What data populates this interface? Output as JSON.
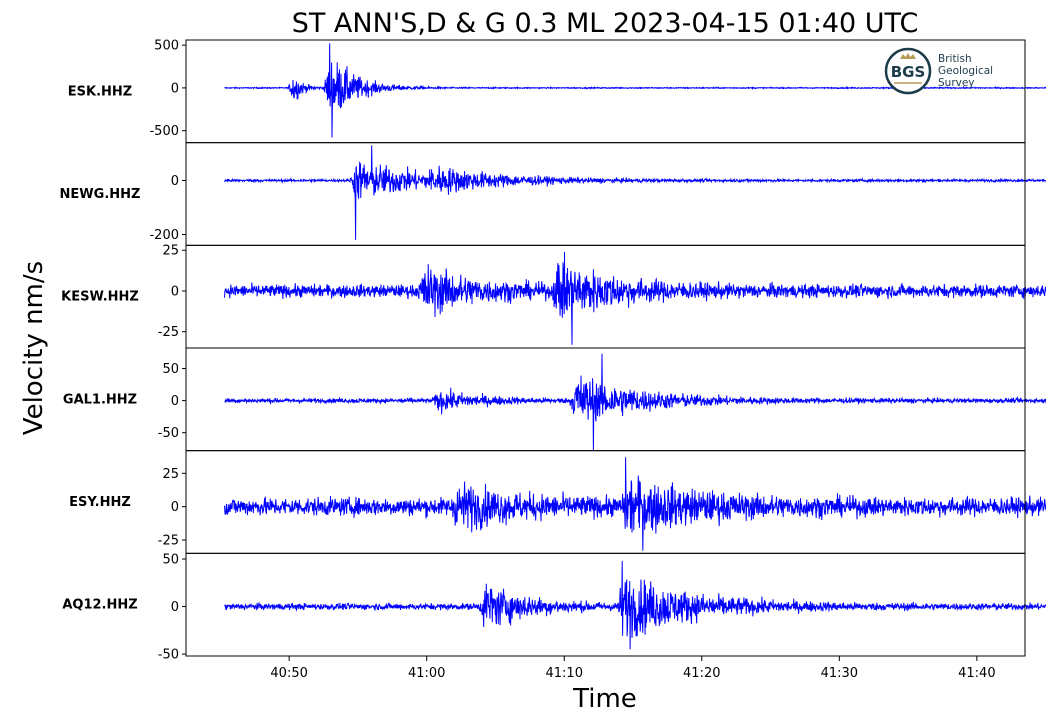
{
  "chart_data": {
    "type": "line",
    "title": "ST ANN'S,D & G 0.3 ML   2023-04-15 01:40 UTC",
    "xlabel": "Time",
    "ylabel": "Velocity nm/s",
    "x_ticks": [
      "40:50",
      "41:00",
      "41:10",
      "41:20",
      "41:30",
      "41:40"
    ],
    "x_tick_seconds": [
      50,
      60,
      70,
      80,
      90,
      100
    ],
    "xlim_seconds": [
      42.5,
      103.5
    ],
    "trace_window_seconds": [
      45.3,
      105.2
    ],
    "line_color": "#0000ff",
    "logo": {
      "lines": [
        "British",
        "Geological",
        "Survey"
      ],
      "mark": "BGS"
    },
    "series": [
      {
        "name": "ESK.HHZ",
        "ylim": [
          -640,
          560
        ],
        "yticks": [
          500,
          0,
          -500
        ],
        "ytick_labels": [
          "500",
          "0",
          "-500"
        ],
        "noise": 6,
        "peak_max": 520,
        "peak_min": -580,
        "events": [
          {
            "t": 50.3,
            "amp": 180,
            "decay": 0.6
          },
          {
            "t": 52.9,
            "amp": 380,
            "decay": 1.8
          }
        ]
      },
      {
        "name": "NEWG.HHZ",
        "ylim": [
          -240,
          140
        ],
        "yticks": [
          0,
          -200
        ],
        "ytick_labels": [
          "0",
          "-200"
        ],
        "noise": 4,
        "peak_max": 130,
        "peak_min": -220,
        "events": [
          {
            "t": 54.8,
            "amp": 70,
            "decay": 5
          },
          {
            "t": 60.4,
            "amp": 28,
            "decay": 5
          }
        ]
      },
      {
        "name": "KESW.HHZ",
        "ylim": [
          -35,
          28
        ],
        "yticks": [
          25,
          0,
          -25
        ],
        "ytick_labels": [
          "25",
          "0",
          "-25"
        ],
        "noise": 3.5,
        "peak_max": 24,
        "peak_min": -33,
        "events": [
          {
            "t": 59.8,
            "amp": 12,
            "decay": 3.5
          },
          {
            "t": 69.5,
            "amp": 15,
            "decay": 4
          }
        ]
      },
      {
        "name": "GAL1.HHZ",
        "ylim": [
          -78,
          82
        ],
        "yticks": [
          50,
          0,
          -50
        ],
        "ytick_labels": [
          "50",
          "0",
          "-50"
        ],
        "noise": 3,
        "peak_max": 73,
        "peak_min": -77,
        "events": [
          {
            "t": 60.8,
            "amp": 14,
            "decay": 3
          },
          {
            "t": 70.8,
            "amp": 38,
            "decay": 4.5
          }
        ]
      },
      {
        "name": "ESY.HHZ",
        "ylim": [
          -35,
          42
        ],
        "yticks": [
          25,
          0,
          -25
        ],
        "ytick_labels": [
          "25",
          "0",
          "-25"
        ],
        "noise": 6,
        "peak_max": 37,
        "peak_min": -33,
        "events": [
          {
            "t": 62.2,
            "amp": 12,
            "decay": 4
          },
          {
            "t": 74.5,
            "amp": 16,
            "decay": 5
          }
        ]
      },
      {
        "name": "AQ12.HHZ",
        "ylim": [
          -52,
          56
        ],
        "yticks": [
          50,
          0,
          -50
        ],
        "ytick_labels": [
          "50",
          "0",
          "-50"
        ],
        "noise": 3,
        "peak_max": 48,
        "peak_min": -45,
        "events": [
          {
            "t": 64.2,
            "amp": 22,
            "decay": 3
          },
          {
            "t": 74.2,
            "amp": 30,
            "decay": 5
          }
        ]
      }
    ]
  }
}
